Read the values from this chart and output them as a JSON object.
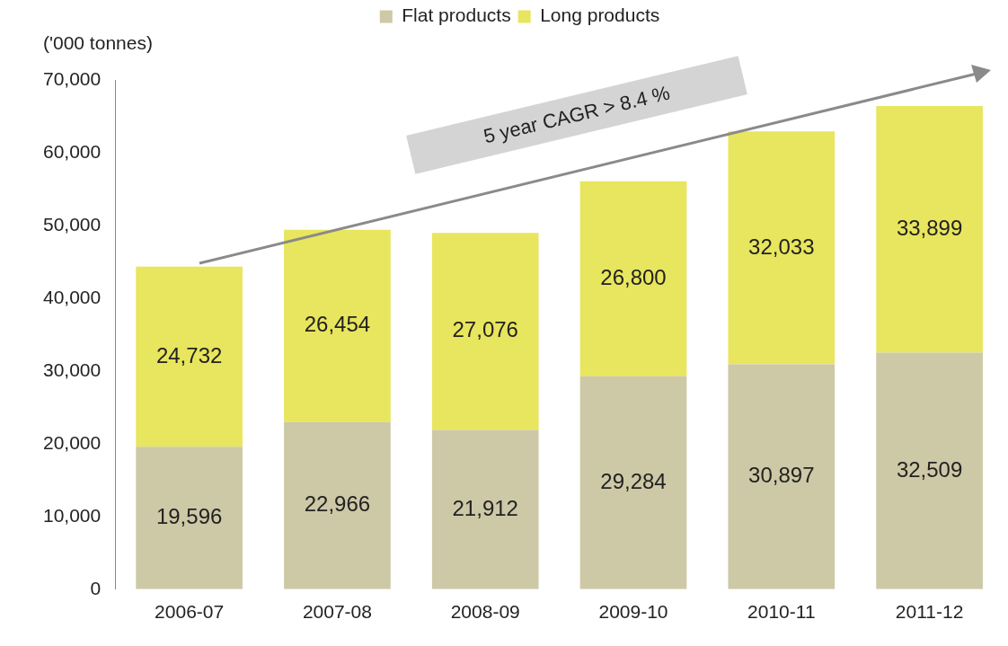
{
  "chart_data": {
    "type": "bar",
    "stacked": true,
    "ylabel": "('000 tonnes)",
    "categories": [
      "2006-07",
      "2007-08",
      "2008-09",
      "2009-10",
      "2010-11",
      "2011-12"
    ],
    "series": [
      {
        "name": "Flat products",
        "color": "#cdc8a6",
        "values": [
          19596,
          22966,
          21912,
          29284,
          30897,
          32509
        ],
        "value_labels": [
          "19,596",
          "22,966",
          "21,912",
          "29,284",
          "30,897",
          "32,509"
        ]
      },
      {
        "name": "Long products",
        "color": "#e8e55e",
        "values": [
          24732,
          26454,
          27076,
          26800,
          32033,
          33899
        ],
        "value_labels": [
          "24,732",
          "26,454",
          "27,076",
          "26,800",
          "32,033",
          "33,899"
        ]
      }
    ],
    "ylim": [
      0,
      70000
    ],
    "yticks": [
      {
        "value": 0,
        "label": "0"
      },
      {
        "value": 10000,
        "label": "10,000"
      },
      {
        "value": 20000,
        "label": "20,000"
      },
      {
        "value": 30000,
        "label": "30,000"
      },
      {
        "value": 40000,
        "label": "40,000"
      },
      {
        "value": 50000,
        "label": "50,000"
      },
      {
        "value": 60000,
        "label": "60,000"
      },
      {
        "value": 70000,
        "label": "70,000"
      }
    ],
    "grid": false,
    "legend": "top",
    "annotations": [
      "5 year CAGR > 8.4 %"
    ]
  }
}
